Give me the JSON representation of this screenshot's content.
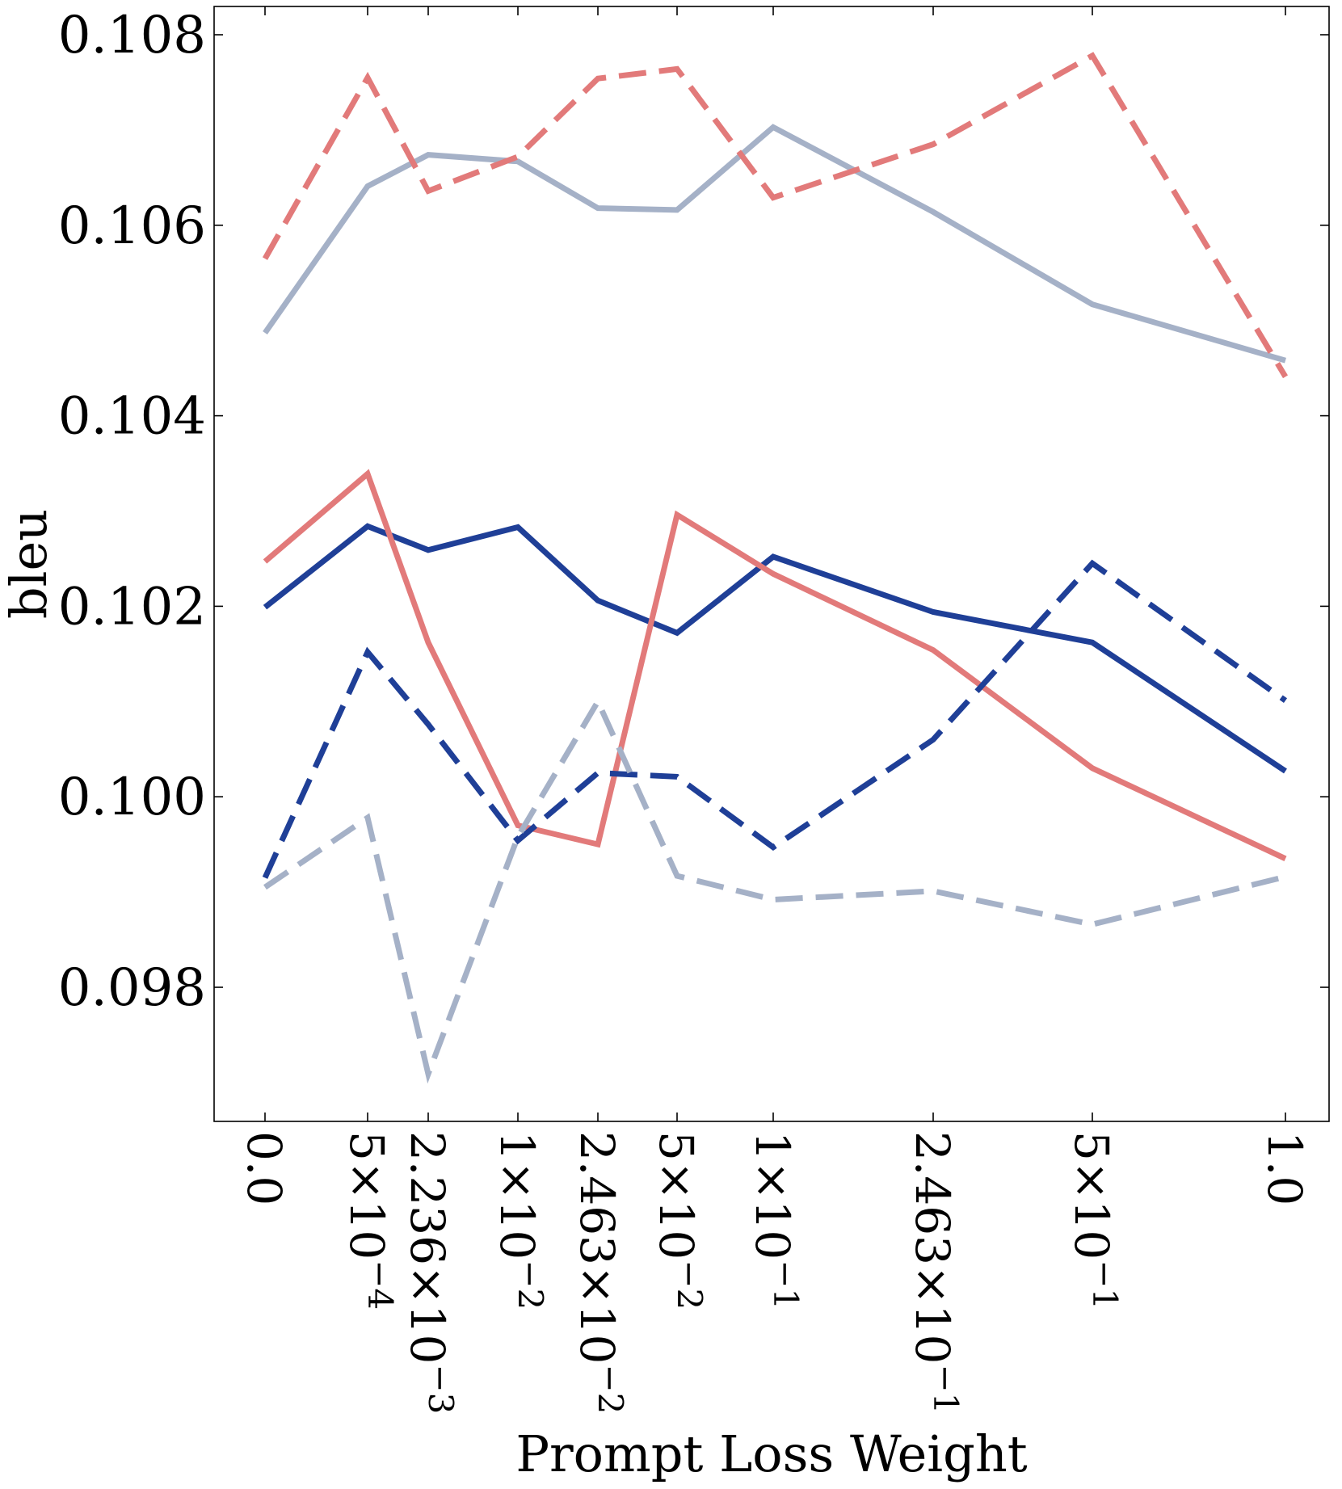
{
  "chart_data": {
    "type": "line",
    "title": "",
    "xlabel": "Prompt Loss Weight",
    "ylabel": "bleu",
    "ylim": [
      0.0965,
      0.1083
    ],
    "grid": false,
    "x": [
      0.0,
      0.0005,
      0.002236,
      0.01,
      0.02463,
      0.05,
      0.1,
      0.2463,
      0.5,
      1.0
    ],
    "x_tick_labels": [
      {
        "mantissa": "0.0",
        "exponent": ""
      },
      {
        "mantissa": "5×10",
        "exponent": "−4"
      },
      {
        "mantissa": "2.236×10",
        "exponent": "−3"
      },
      {
        "mantissa": "1×10",
        "exponent": "−2"
      },
      {
        "mantissa": "2.463×10",
        "exponent": "−2"
      },
      {
        "mantissa": "5×10",
        "exponent": "−2"
      },
      {
        "mantissa": "1×10",
        "exponent": "−1"
      },
      {
        "mantissa": "2.463×10",
        "exponent": "−1"
      },
      {
        "mantissa": "5×10",
        "exponent": "−1"
      },
      {
        "mantissa": "1.0",
        "exponent": ""
      }
    ],
    "y_ticks": [
      "0.098",
      "0.100",
      "0.102",
      "0.104",
      "0.106",
      "0.108"
    ],
    "y_tick_values": [
      0.098,
      0.1,
      0.102,
      0.104,
      0.106,
      0.108
    ],
    "series": [
      {
        "name": "light-blue-solid",
        "color": "#a5b1c7",
        "style": "solid",
        "values": [
          0.10487,
          0.10641,
          0.10674,
          0.10667,
          0.10618,
          0.10616,
          0.10703,
          0.10614,
          0.10517,
          0.10458
        ]
      },
      {
        "name": "red-dashed",
        "color": "#e27a7a",
        "style": "dashed",
        "values": [
          0.10565,
          0.10755,
          0.10636,
          0.10672,
          0.10754,
          0.10764,
          0.10629,
          0.10685,
          0.10778,
          0.10441
        ]
      },
      {
        "name": "dark-blue-solid",
        "color": "#1f3f97",
        "style": "solid",
        "values": [
          0.10199,
          0.10284,
          0.10259,
          0.10283,
          0.10206,
          0.10172,
          0.10252,
          0.10194,
          0.10162,
          0.10027
        ]
      },
      {
        "name": "red-solid",
        "color": "#e27a7a",
        "style": "solid",
        "values": [
          0.10247,
          0.10339,
          0.10162,
          0.0997,
          0.0995,
          0.10296,
          0.10234,
          0.10154,
          0.1003,
          0.09935
        ]
      },
      {
        "name": "dark-blue-dashed",
        "color": "#1f3f97",
        "style": "dashed",
        "values": [
          0.09915,
          0.10152,
          0.10076,
          0.09954,
          0.10025,
          0.10021,
          0.09947,
          0.1006,
          0.10245,
          0.10101
        ]
      },
      {
        "name": "light-blue-dashed",
        "color": "#a5b1c7",
        "style": "dashed",
        "values": [
          0.09905,
          0.09978,
          0.09709,
          0.09958,
          0.101,
          0.09917,
          0.09892,
          0.09901,
          0.09866,
          0.09916
        ]
      }
    ]
  }
}
